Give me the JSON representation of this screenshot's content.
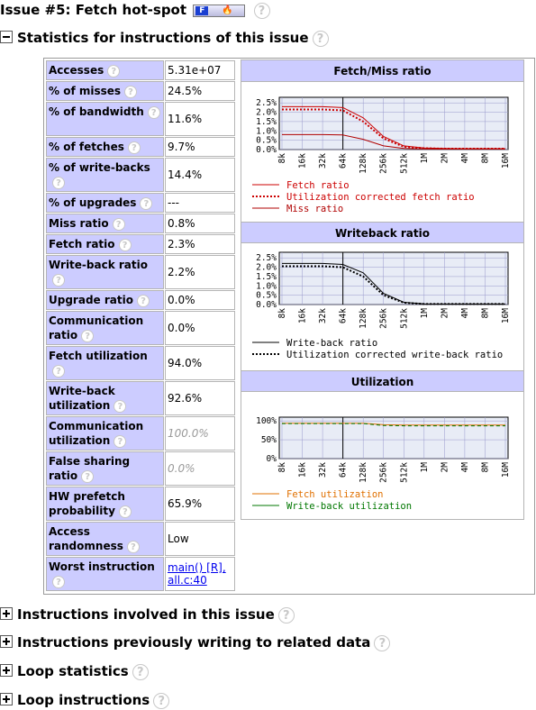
{
  "title": "Issue #5: Fetch hot-spot",
  "badge": {
    "letter": "F"
  },
  "help_glyph": "?",
  "sections": {
    "statistics": "Statistics for instructions of this issue",
    "involved": "Instructions involved in this issue",
    "previous": "Instructions previously writing to related data",
    "loop_stats": "Loop statistics",
    "loop_instr": "Loop instructions"
  },
  "stats": [
    {
      "label": "Accesses",
      "value": "5.31e+07"
    },
    {
      "label": "% of misses",
      "value": "24.5%"
    },
    {
      "label": "% of bandwidth",
      "value": "11.6%"
    },
    {
      "label": "% of fetches",
      "value": "9.7%"
    },
    {
      "label": "% of write-backs",
      "value": "14.4%"
    },
    {
      "label": "% of upgrades",
      "value": "---"
    },
    {
      "label": "Miss ratio",
      "value": "0.8%"
    },
    {
      "label": "Fetch ratio",
      "value": "2.3%"
    },
    {
      "label": "Write-back ratio",
      "value": "2.2%"
    },
    {
      "label": "Upgrade ratio",
      "value": "0.0%"
    },
    {
      "label": "Communication ratio",
      "value": "0.0%"
    },
    {
      "label": "Fetch utilization",
      "value": "94.0%"
    },
    {
      "label": "Write-back utilization",
      "value": "92.6%"
    },
    {
      "label": "Communication utilization",
      "value": "100.0%"
    },
    {
      "label": "False sharing ratio",
      "value": "0.0%"
    },
    {
      "label": "HW prefetch probability",
      "value": "65.9%"
    },
    {
      "label": "Access randomness",
      "value": "Low"
    },
    {
      "label": "Worst instruction",
      "value": "main() [R], all.c:40"
    }
  ],
  "colors": {
    "header_bg": "#ccccff",
    "grid": "#9999cc",
    "plot_bg": "#e8ecf6",
    "fetch": "#cc0000",
    "util_fetch": "#e07000",
    "wb_util": "#007700"
  },
  "chart_data": [
    {
      "type": "line",
      "title": "Fetch/Miss ratio",
      "categories": [
        "8k",
        "16k",
        "32k",
        "64k",
        "128k",
        "256k",
        "512k",
        "1M",
        "2M",
        "4M",
        "8M",
        "16M"
      ],
      "ytick_labels": [
        "0.0%",
        "0.5%",
        "1.0%",
        "1.5%",
        "2.0%",
        "2.5%"
      ],
      "ylim": [
        0,
        2.8
      ],
      "marker_category": "64k",
      "grid": true,
      "legend_placement": "bottom",
      "series": [
        {
          "name": "Fetch ratio",
          "style": "solid",
          "values": [
            2.3,
            2.3,
            2.3,
            2.25,
            1.7,
            0.7,
            0.2,
            0.08,
            0.06,
            0.05,
            0.05,
            0.05
          ]
        },
        {
          "name": "Utilization corrected fetch ratio",
          "style": "dotted",
          "values": [
            2.15,
            2.15,
            2.15,
            2.1,
            1.5,
            0.6,
            0.15,
            0.07,
            0.05,
            0.05,
            0.05,
            0.05
          ]
        },
        {
          "name": "Miss ratio",
          "style": "solid-thin",
          "values": [
            0.8,
            0.8,
            0.8,
            0.78,
            0.55,
            0.2,
            0.06,
            0.04,
            0.03,
            0.03,
            0.03,
            0.03
          ]
        }
      ]
    },
    {
      "type": "line",
      "title": "Writeback ratio",
      "categories": [
        "8k",
        "16k",
        "32k",
        "64k",
        "128k",
        "256k",
        "512k",
        "1M",
        "2M",
        "4M",
        "8M",
        "16M"
      ],
      "ytick_labels": [
        "0.0%",
        "0.5%",
        "1.0%",
        "1.5%",
        "2.0%",
        "2.5%"
      ],
      "ylim": [
        0,
        2.8
      ],
      "marker_category": "64k",
      "grid": true,
      "legend_placement": "bottom",
      "series": [
        {
          "name": "Write-back ratio",
          "style": "solid",
          "values": [
            2.2,
            2.2,
            2.2,
            2.15,
            1.7,
            0.6,
            0.12,
            0.04,
            0.03,
            0.03,
            0.03,
            0.03
          ]
        },
        {
          "name": "Utilization corrected write-back ratio",
          "style": "dotted",
          "values": [
            2.05,
            2.05,
            2.05,
            2.0,
            1.5,
            0.5,
            0.1,
            0.03,
            0.03,
            0.03,
            0.03,
            0.03
          ]
        }
      ]
    },
    {
      "type": "line",
      "title": "Utilization",
      "categories": [
        "8k",
        "16k",
        "32k",
        "64k",
        "128k",
        "256k",
        "512k",
        "1M",
        "2M",
        "4M",
        "8M",
        "16M"
      ],
      "ytick_labels": [
        "0%",
        "50%",
        "100%"
      ],
      "ylim": [
        0,
        110
      ],
      "marker_category": "64k",
      "grid": true,
      "legend_placement": "bottom",
      "series": [
        {
          "name": "Fetch utilization",
          "style": "solid",
          "values": [
            94,
            94,
            94,
            94,
            94,
            90,
            89,
            89,
            89,
            89,
            89,
            89
          ]
        },
        {
          "name": "Write-back utilization",
          "style": "dashed",
          "values": [
            93,
            93,
            93,
            93,
            93,
            88,
            87,
            87,
            87,
            87,
            87,
            87
          ]
        }
      ]
    }
  ]
}
